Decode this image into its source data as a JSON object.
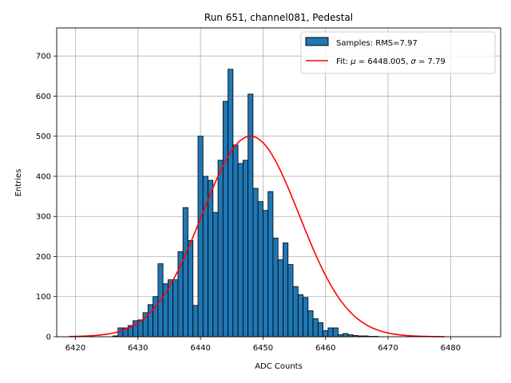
{
  "chart_data": {
    "type": "histogram",
    "title": "Run 651, channel081, Pedestal",
    "xlabel": "ADC Counts",
    "ylabel": "Entries",
    "xlim": [
      6417,
      6488
    ],
    "ylim": [
      0,
      770
    ],
    "x_ticks": [
      6420,
      6430,
      6440,
      6450,
      6460,
      6470,
      6480
    ],
    "y_ticks": [
      0,
      100,
      200,
      300,
      400,
      500,
      600,
      700
    ],
    "grid": true,
    "legend_position": "top-right",
    "colors": {
      "bars": "#1f77b4",
      "bar_edge": "#000000",
      "fit": "#ff0000",
      "grid": "#b0b0b0"
    },
    "bin_width": 0.8,
    "bin_start": 6426.0,
    "series": [
      {
        "name": "Samples: RMS=7.97",
        "kind": "bars",
        "values": [
          2,
          22,
          22,
          28,
          40,
          42,
          60,
          80,
          100,
          182,
          132,
          142,
          142,
          212,
          322,
          240,
          78,
          500,
          400,
          390,
          310,
          440,
          587,
          667,
          478,
          432,
          440,
          605,
          370,
          337,
          315,
          362,
          246,
          192,
          234,
          180,
          125,
          105,
          98,
          65,
          45,
          35,
          15,
          22,
          22,
          5,
          8,
          5,
          3,
          2,
          2,
          1,
          1
        ]
      },
      {
        "name": "Fit: μ = 6448.005, σ = 7.79",
        "kind": "line",
        "mu": 6448.005,
        "sigma": 7.79,
        "amplitude": 500,
        "x_range": [
          6419,
          6479
        ]
      }
    ]
  },
  "legend": {
    "samples_prefix": "Samples: RMS=7.97",
    "fit_prefix": "Fit: ",
    "fit_mu_symbol": "μ",
    "fit_mu_text": " = 6448.005, ",
    "fit_sigma_symbol": "σ",
    "fit_sigma_text": " = 7.79"
  }
}
